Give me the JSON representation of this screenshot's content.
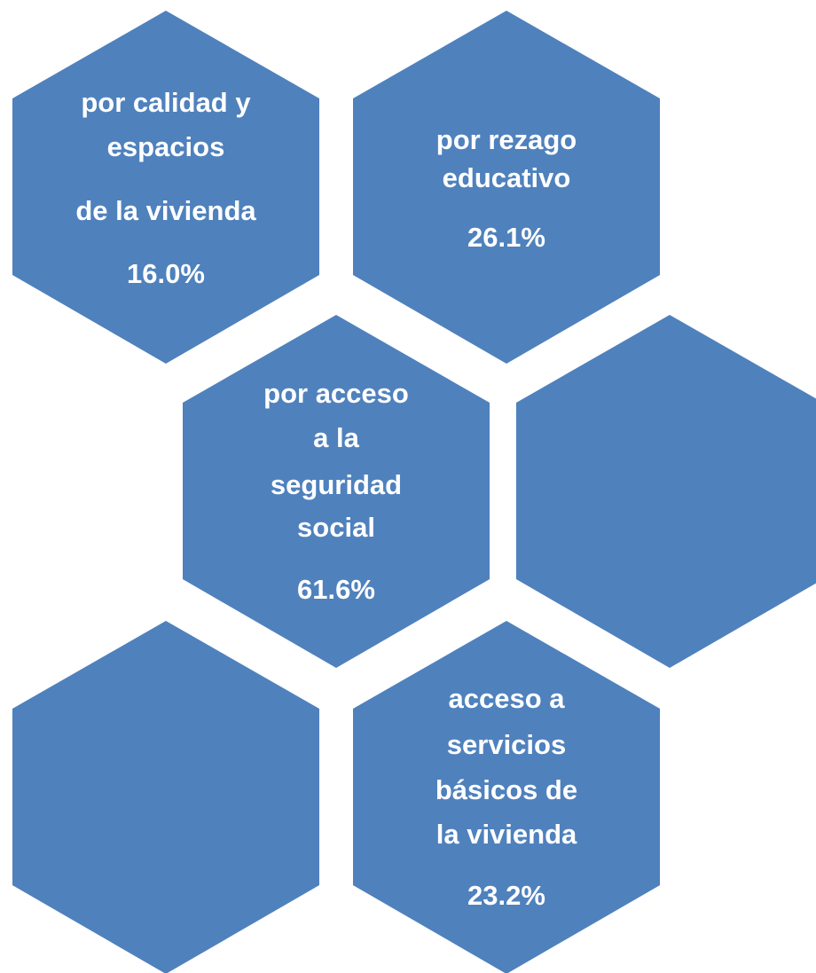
{
  "nodes": [
    {
      "lines": [
        "por calidad y",
        "espacios",
        "de la vivienda"
      ],
      "value": "16.0%"
    },
    {
      "lines": [
        "por rezago",
        "educativo"
      ],
      "value": "26.1%"
    },
    {
      "lines": [
        "por acceso",
        "a la",
        "seguridad",
        "social"
      ],
      "value": "61.6%"
    },
    {
      "lines": [
        "acceso a",
        "servicios",
        "básicos de",
        "la vivienda"
      ],
      "value": "23.2%"
    }
  ]
}
